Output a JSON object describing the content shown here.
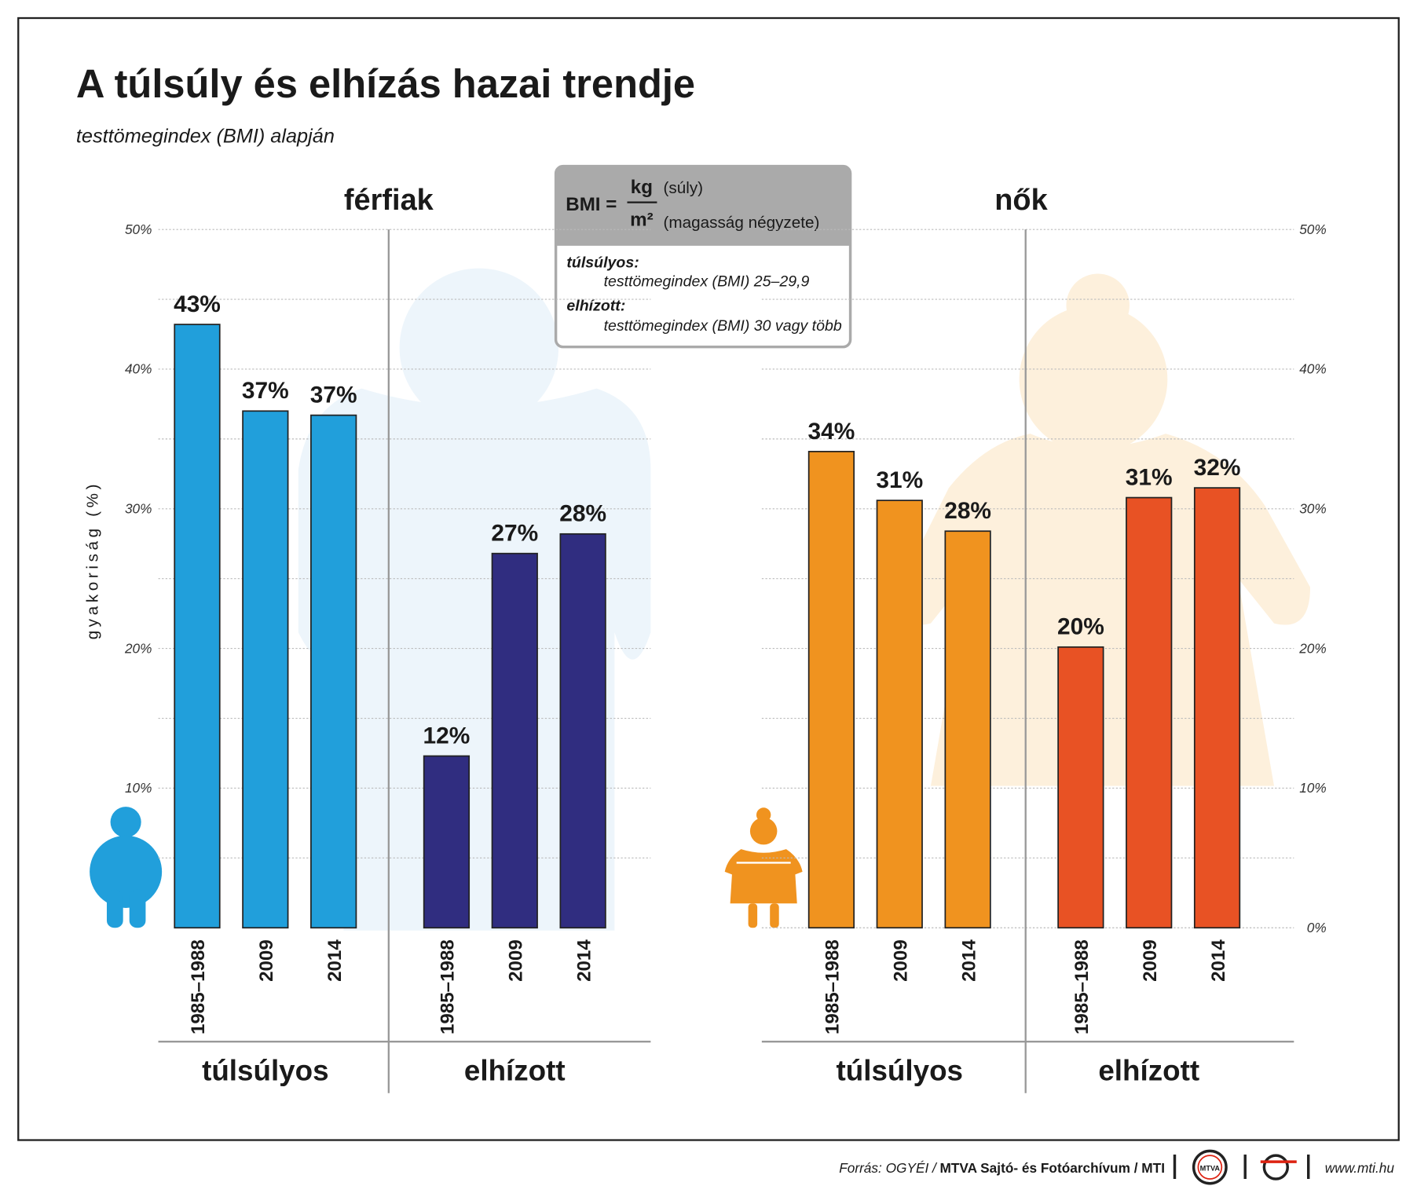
{
  "title": "A túlsúly és elhízás hazai trendje",
  "subtitle": "testtömegindex (BMI) alapján",
  "y_label": "gyakoriság (%)",
  "bmi_box": {
    "lhs": "BMI =",
    "numerator": "kg",
    "numerator_note": "(súly)",
    "denominator": "m²",
    "denominator_note": "(magasság négyzete)",
    "items": [
      {
        "term": "túlsúlyos:",
        "definition": "testtömegindex (BMI) 25–29,9"
      },
      {
        "term": "elhízott:",
        "definition": "testtömegindex (BMI) 30 vagy több"
      }
    ]
  },
  "source": {
    "prefix": "Forrás: OGYÉI /",
    "main": "MTVA Sajtó- és Fotóarchívum / MTI",
    "logo": "MTVA",
    "url": "www.mti.hu"
  },
  "chart_data": [
    {
      "type": "bar",
      "title": "férfiak",
      "tick_side": "left",
      "ylim": [
        0,
        50
      ],
      "yticks": [
        {
          "value": 10,
          "label": "10%"
        },
        {
          "value": 20,
          "label": "20%"
        },
        {
          "value": 30,
          "label": "30%"
        },
        {
          "value": 40,
          "label": "40%"
        },
        {
          "value": 50,
          "label": "50%"
        }
      ],
      "minor_yticks": [
        5,
        15,
        25,
        35,
        45
      ],
      "grid": true,
      "groups": [
        {
          "name": "túlsúlyos",
          "color": "#219fdb",
          "categories": [
            "1985–1988",
            "2009",
            "2014"
          ],
          "values": [
            43.2,
            37,
            36.7
          ],
          "value_labels": [
            "43%",
            "37%",
            "37%"
          ]
        },
        {
          "name": "elhízott",
          "color": "#302d80",
          "categories": [
            "1985–1988",
            "2009",
            "2014"
          ],
          "values": [
            12.3,
            26.8,
            28.2
          ],
          "value_labels": [
            "12%",
            "27%",
            "28%"
          ]
        }
      ]
    },
    {
      "type": "bar",
      "title": "nők",
      "tick_side": "right",
      "ylim": [
        0,
        50
      ],
      "yticks": [
        {
          "value": 0,
          "label": "0%"
        },
        {
          "value": 10,
          "label": "10%"
        },
        {
          "value": 20,
          "label": "20%"
        },
        {
          "value": 30,
          "label": "30%"
        },
        {
          "value": 40,
          "label": "40%"
        },
        {
          "value": 50,
          "label": "50%"
        }
      ],
      "minor_yticks": [
        5,
        15,
        25,
        35,
        45
      ],
      "grid": true,
      "groups": [
        {
          "name": "túlsúlyos",
          "color": "#f0931f",
          "categories": [
            "1985–1988",
            "2009",
            "2014"
          ],
          "values": [
            34.1,
            30.6,
            28.4
          ],
          "value_labels": [
            "34%",
            "31%",
            "28%"
          ]
        },
        {
          "name": "elhízott",
          "color": "#e85224",
          "categories": [
            "1985–1988",
            "2009",
            "2014"
          ],
          "values": [
            20.1,
            30.8,
            31.5
          ],
          "value_labels": [
            "20%",
            "31%",
            "32%"
          ]
        }
      ]
    }
  ]
}
